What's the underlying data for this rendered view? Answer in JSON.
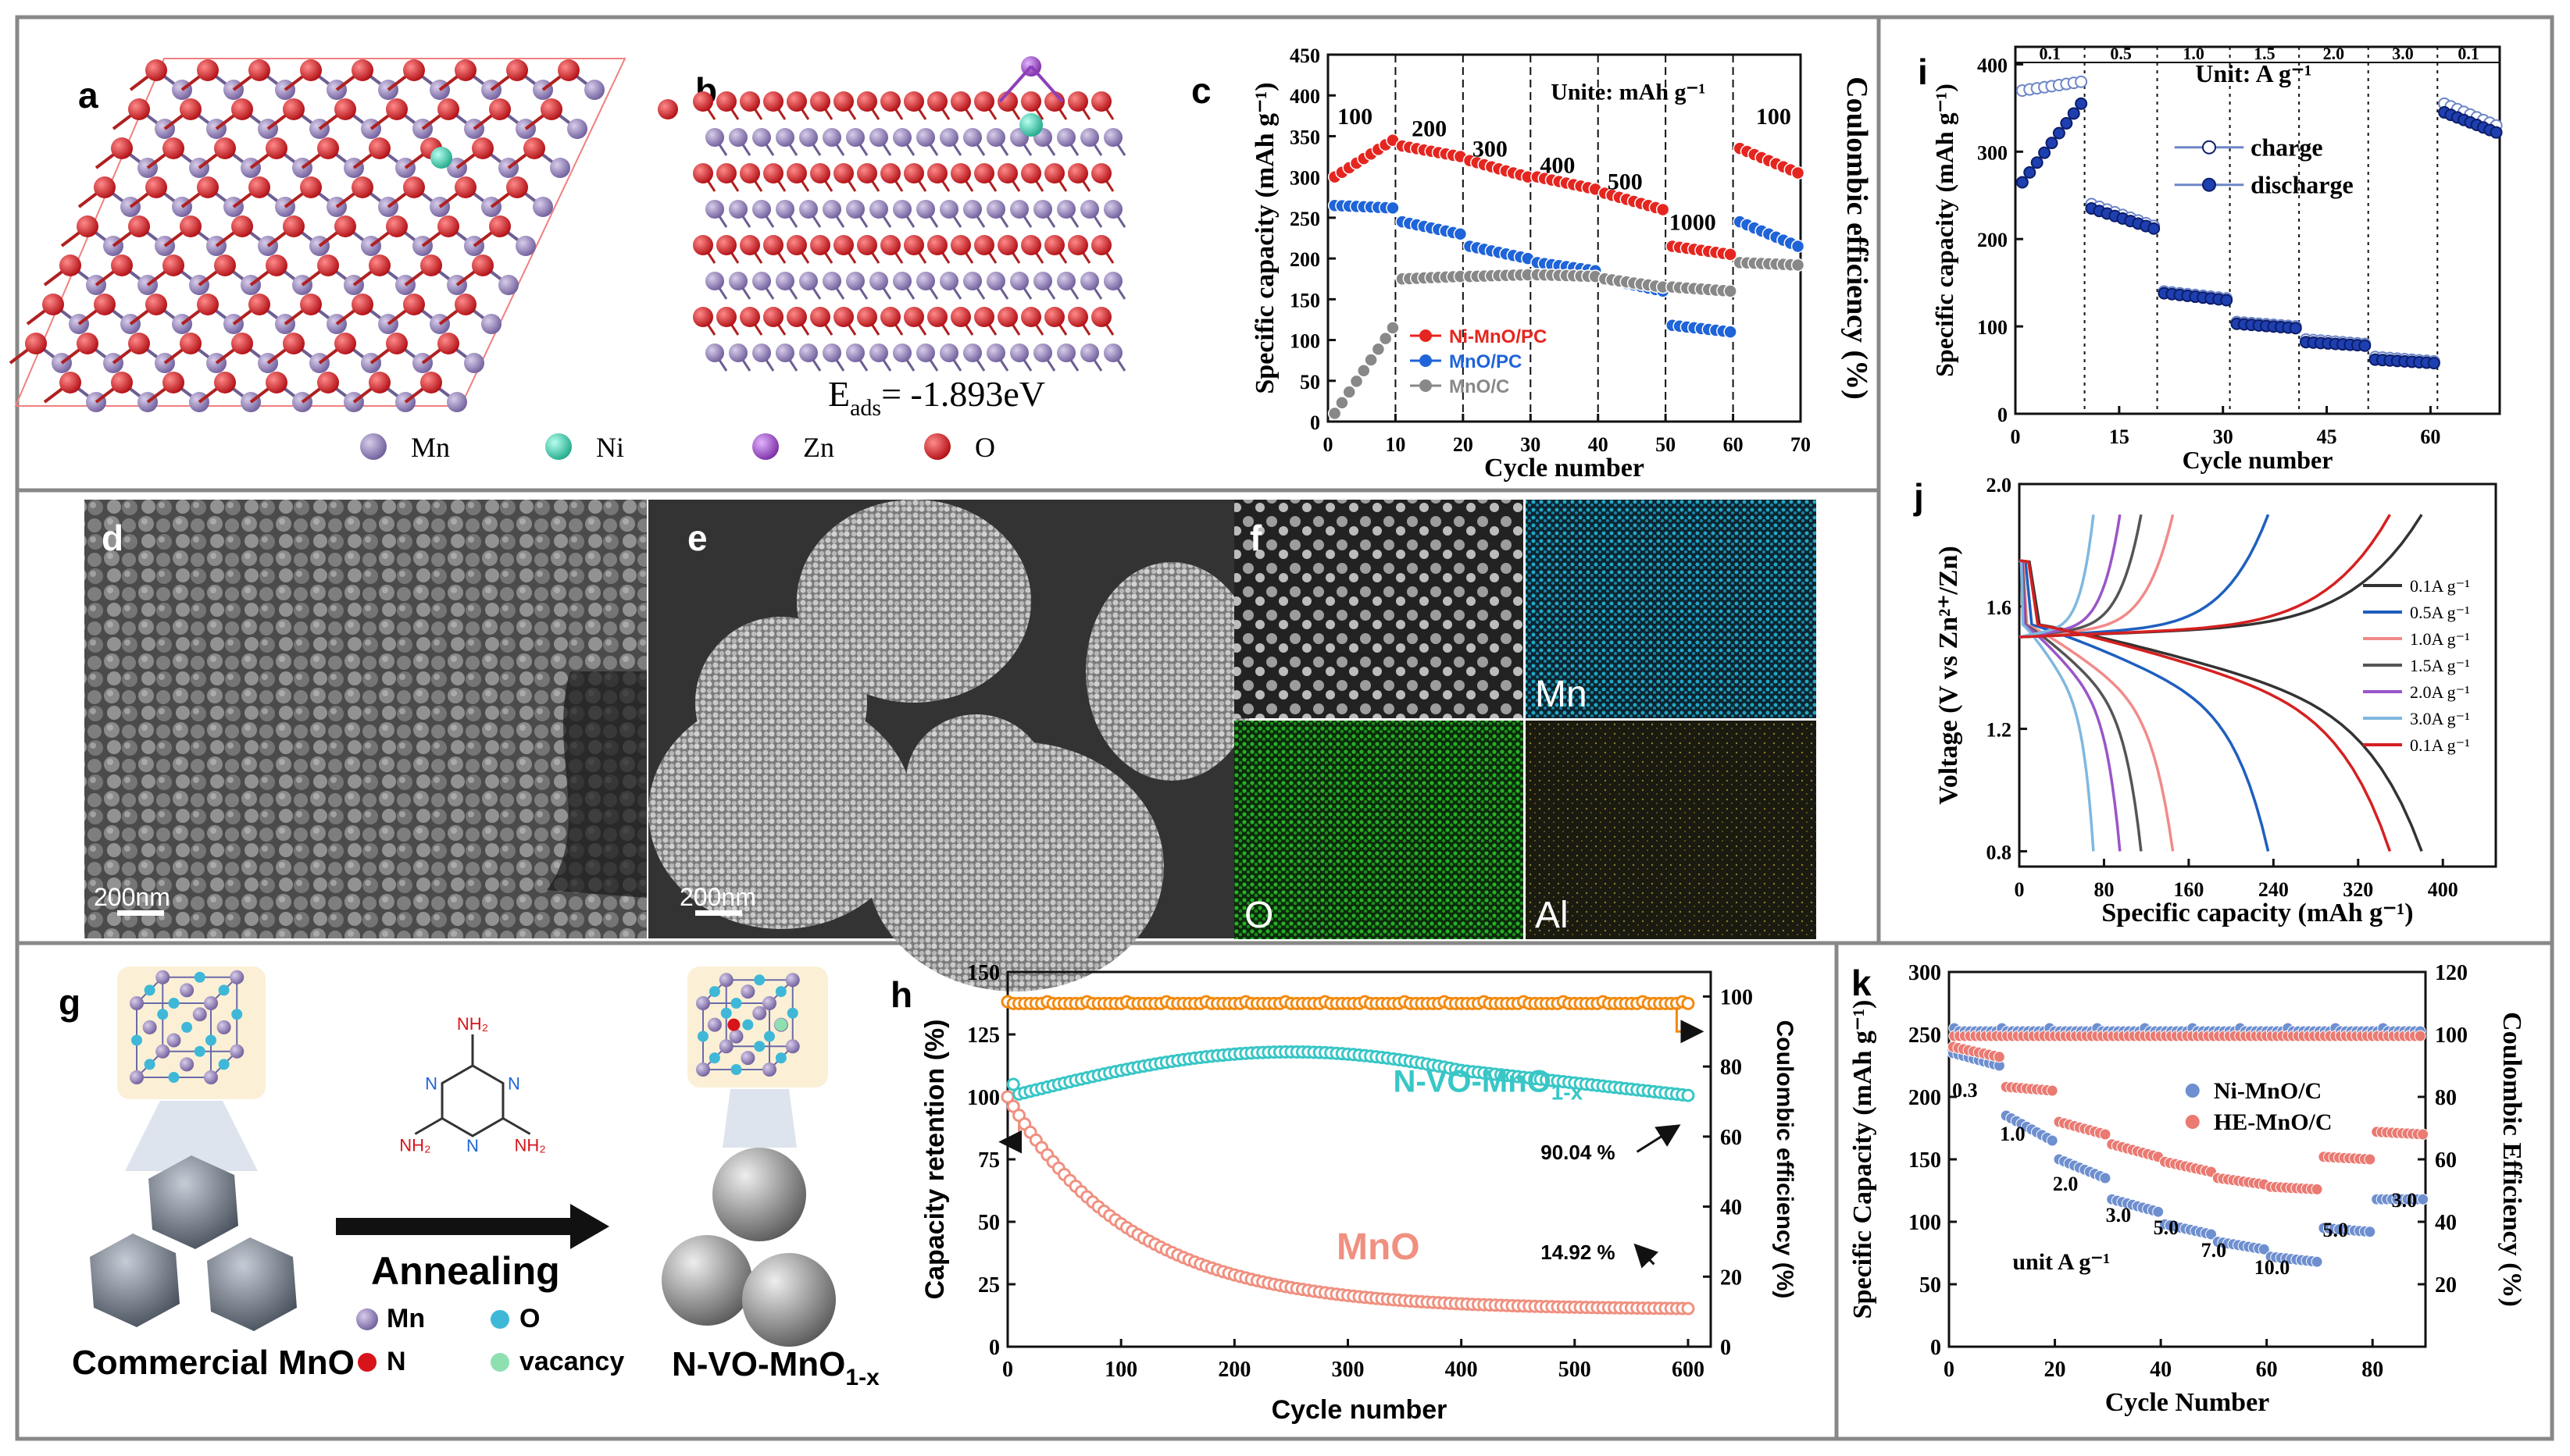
{
  "panels": {
    "a": {
      "label": "a"
    },
    "b": {
      "label": "b",
      "eads": "E",
      "eads_sub": "ads",
      "eads_value": "= -1.893eV"
    },
    "c": {
      "label": "c"
    },
    "d": {
      "label": "d",
      "scale": "200nm"
    },
    "e": {
      "label": "e",
      "scale": "200nm"
    },
    "f": {
      "label": "f",
      "maps": [
        "Mn",
        "O",
        "Al"
      ]
    },
    "g": {
      "label": "g",
      "start": "Commercial MnO",
      "process": "Annealing",
      "end": "N-VO-MnO",
      "end_sub": "1-x",
      "legend": [
        "Mn",
        "O",
        "N",
        "vacancy"
      ],
      "molecule_label": "NH₂"
    },
    "h": {
      "label": "h"
    },
    "i": {
      "label": "i"
    },
    "j": {
      "label": "j"
    },
    "k": {
      "label": "k"
    }
  },
  "atom_legend": [
    "Mn",
    "Ni",
    "Zn",
    "O"
  ],
  "colors": {
    "Mn": "#8a78b0",
    "Ni": "#33c7a8",
    "Zn": "#8e3fb8",
    "O": "#d6141a",
    "red": "#e52620",
    "blue": "#1f64d8",
    "gray": "#888888",
    "orange": "#f28a10",
    "teal": "#39c6c6",
    "salmon": "#f09080"
  },
  "chart_data": [
    {
      "id": "c",
      "type": "scatter",
      "xlabel": "Cycle number",
      "ylabel": "Specific capacity (mAh g⁻¹)",
      "ylabel_right": "Coulombic efficiency (%)",
      "xlim": [
        0,
        70
      ],
      "ylim": [
        0,
        450
      ],
      "xticks": [
        "0",
        "10",
        "20",
        "30",
        "40",
        "50",
        "60",
        "70"
      ],
      "yticks": [
        "0",
        "50",
        "100",
        "150",
        "200",
        "250",
        "300",
        "350",
        "400",
        "450"
      ],
      "unit_note": "Unite: mAh g⁻¹",
      "rate_labels": [
        "100",
        "200",
        "300",
        "400",
        "500",
        "1000",
        "100"
      ],
      "series": [
        {
          "name": "Ni-MnO/PC",
          "segments": [
            [
              300,
              345
            ],
            [
              338,
              325
            ],
            [
              320,
              300
            ],
            [
              300,
              285
            ],
            [
              280,
              260
            ],
            [
              215,
              205
            ],
            [
              335,
              305
            ]
          ]
        },
        {
          "name": "MnO/PC",
          "segments": [
            [
              265,
              262
            ],
            [
              245,
              230
            ],
            [
              215,
              200
            ],
            [
              195,
              185
            ],
            [
              175,
              160
            ],
            [
              118,
              110
            ],
            [
              245,
              215
            ]
          ]
        },
        {
          "name": "MnO/C",
          "segments": [
            [
              10,
              115
            ],
            [
              175,
              178
            ],
            [
              178,
              180
            ],
            [
              180,
              178
            ],
            [
              175,
              165
            ],
            [
              165,
              160
            ],
            [
              195,
              192
            ]
          ]
        }
      ]
    },
    {
      "id": "i",
      "type": "scatter",
      "xlabel": "Cycle number",
      "ylabel": "Specific capacity (mAh g⁻¹)",
      "xlim": [
        0,
        70
      ],
      "ylim": [
        0,
        420
      ],
      "xticks": [
        "0",
        "15",
        "30",
        "45",
        "60"
      ],
      "yticks": [
        "0",
        "100",
        "200",
        "300",
        "400"
      ],
      "unit_note": "Unit: A g⁻¹",
      "rate_labels": [
        "0.1",
        "0.5",
        "1.0",
        "1.5",
        "2.0",
        "3.0",
        "0.1"
      ],
      "series": [
        {
          "name": "charge",
          "segments": [
            [
              370,
              380
            ],
            [
              240,
              215
            ],
            [
              140,
              132
            ],
            [
              105,
              100
            ],
            [
              85,
              80
            ],
            [
              65,
              60
            ],
            [
              355,
              330
            ]
          ]
        },
        {
          "name": "discharge",
          "segments": [
            [
              265,
              355
            ],
            [
              235,
              212
            ],
            [
              138,
              130
            ],
            [
              103,
              98
            ],
            [
              82,
              78
            ],
            [
              62,
              58
            ],
            [
              345,
              322
            ]
          ]
        }
      ]
    },
    {
      "id": "j",
      "type": "line",
      "xlabel": "Specific capacity (mAh g⁻¹)",
      "ylabel": "Voltage (V vs Zn²⁺/Zn)",
      "xlim": [
        0,
        450
      ],
      "ylim": [
        0.75,
        2.0
      ],
      "xticks": [
        "0",
        "80",
        "160",
        "240",
        "320",
        "400"
      ],
      "yticks": [
        "0.8",
        "1.2",
        "1.6",
        "2.0"
      ],
      "series": [
        {
          "name": "0.1A g⁻¹",
          "capacity": 380
        },
        {
          "name": "0.5A g⁻¹",
          "capacity": 235
        },
        {
          "name": "1.0A g⁻¹",
          "capacity": 145
        },
        {
          "name": "1.5A g⁻¹",
          "capacity": 115
        },
        {
          "name": "2.0A g⁻¹",
          "capacity": 95
        },
        {
          "name": "3.0A g⁻¹",
          "capacity": 70
        },
        {
          "name": "0.1A g⁻¹",
          "capacity": 350
        }
      ]
    },
    {
      "id": "h",
      "type": "scatter",
      "xlabel": "Cycle number",
      "ylabel": "Capacity retention (%)",
      "ylabel_right": "Coulombic efficiency (%)",
      "xlim": [
        0,
        620
      ],
      "ylim": [
        0,
        150
      ],
      "y2lim": [
        0,
        107
      ],
      "xticks": [
        "0",
        "100",
        "200",
        "300",
        "400",
        "500",
        "600"
      ],
      "yticks": [
        "0",
        "25",
        "50",
        "75",
        "100",
        "125",
        "150"
      ],
      "y2ticks": [
        "0",
        "20",
        "40",
        "60",
        "80",
        "100"
      ],
      "series_names": [
        "N-VO-MnO",
        "MnO"
      ],
      "annotations": [
        "90.04 %",
        "14.92 %"
      ],
      "retention_final": [
        90.04,
        14.92
      ],
      "ce": 98
    },
    {
      "id": "k",
      "type": "scatter",
      "xlabel": "Cycle Number",
      "ylabel": "Specific Capacity (mAh g⁻¹)",
      "ylabel_right": "Coulombic Efficiency (%)",
      "xlim": [
        0,
        90
      ],
      "ylim": [
        0,
        300
      ],
      "y2lim": [
        0,
        120
      ],
      "xticks": [
        "0",
        "20",
        "40",
        "60",
        "80"
      ],
      "yticks": [
        "0",
        "50",
        "100",
        "150",
        "200",
        "250",
        "300"
      ],
      "y2ticks": [
        "20",
        "40",
        "60",
        "80",
        "100",
        "120"
      ],
      "unit_note": "unit A g⁻¹",
      "rate_labels": [
        "0.3",
        "1.0",
        "2.0",
        "3.0",
        "5.0",
        "7.0",
        "10.0",
        "5.0",
        "3.0"
      ],
      "series": [
        {
          "name": "Ni-MnO/C",
          "segments": [
            [
              235,
              225
            ],
            [
              185,
              165
            ],
            [
              150,
              135
            ],
            [
              118,
              108
            ],
            [
              98,
              90
            ],
            [
              84,
              78
            ],
            [
              72,
              68
            ],
            [
              95,
              92
            ],
            [
              118,
              118
            ]
          ]
        },
        {
          "name": "HE-MnO/C",
          "segments": [
            [
              240,
              232
            ],
            [
              208,
              205
            ],
            [
              180,
              170
            ],
            [
              162,
              152
            ],
            [
              148,
              140
            ],
            [
              135,
              130
            ],
            [
              128,
              126
            ],
            [
              152,
              150
            ],
            [
              172,
              170
            ]
          ]
        }
      ]
    }
  ]
}
